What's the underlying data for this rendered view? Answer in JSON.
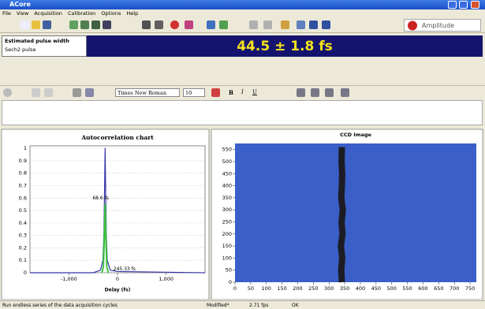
{
  "window": {
    "title": "ACore"
  },
  "menu": [
    "File",
    "View",
    "Acquisition",
    "Calibration",
    "Options",
    "Help"
  ],
  "logo": "Amplitude",
  "pulse": {
    "label": "Estimated pulse width",
    "shape": "Sech2 pulse",
    "value": "44.5 ± 1.8 fs"
  },
  "editor": {
    "font": "Times New Roman",
    "size": 10
  },
  "charts": [
    {
      "type": "line",
      "title": "Autocorrelation chart",
      "x_label": "Delay (fs)",
      "xlim": [
        -1800,
        1800
      ],
      "xticks": [
        {
          "value": -1000,
          "label": "-1,000"
        },
        0,
        {
          "value": 1000,
          "label": "1,000"
        }
      ],
      "ylim": [
        0,
        1.02
      ],
      "yticks": [
        0,
        0.1,
        0.2,
        0.3,
        0.4,
        0.5,
        0.6,
        0.7,
        0.8,
        0.9,
        1
      ],
      "series": [
        {
          "color": "#3434a8",
          "x": [
            -1800,
            -500,
            -350,
            -300,
            -280,
            -265,
            -255,
            -245,
            -230,
            -210,
            -150,
            0,
            1800
          ],
          "values": [
            0,
            0,
            0.02,
            0.1,
            0.3,
            0.7,
            1,
            0.7,
            0.3,
            0.1,
            0.02,
            0.01,
            0
          ]
        },
        {
          "color": "#3cc43c",
          "x": [
            -320,
            -290,
            -270,
            -255,
            -240,
            -220,
            -190
          ],
          "values": [
            0,
            0.05,
            0.3,
            0.55,
            0.3,
            0.05,
            0
          ]
        }
      ],
      "annotations": [
        "68.6 fs",
        "245.33 fs"
      ]
    },
    {
      "type": "image",
      "title": "CCD Image",
      "background": "#3a5fc8",
      "xlim": [
        0,
        770
      ],
      "xticks": [
        0,
        50,
        100,
        150,
        200,
        250,
        300,
        350,
        400,
        450,
        500,
        550,
        600,
        650,
        700,
        750
      ],
      "ylim": [
        0,
        575
      ],
      "yticks": [
        0,
        50,
        100,
        150,
        200,
        250,
        300,
        350,
        400,
        450,
        500,
        550
      ],
      "series": [
        {
          "color": "#1c1c24",
          "x": [
            341,
            339,
            342,
            338,
            343,
            340,
            344,
            339,
            341,
            342,
            340,
            341
          ],
          "values": [
            0,
            50,
            100,
            150,
            200,
            250,
            300,
            350,
            400,
            450,
            500,
            560
          ]
        }
      ]
    }
  ],
  "status": [
    "Run endless series of the data acquisition cycles",
    "Modified*",
    "2.71 fps",
    "OK"
  ]
}
